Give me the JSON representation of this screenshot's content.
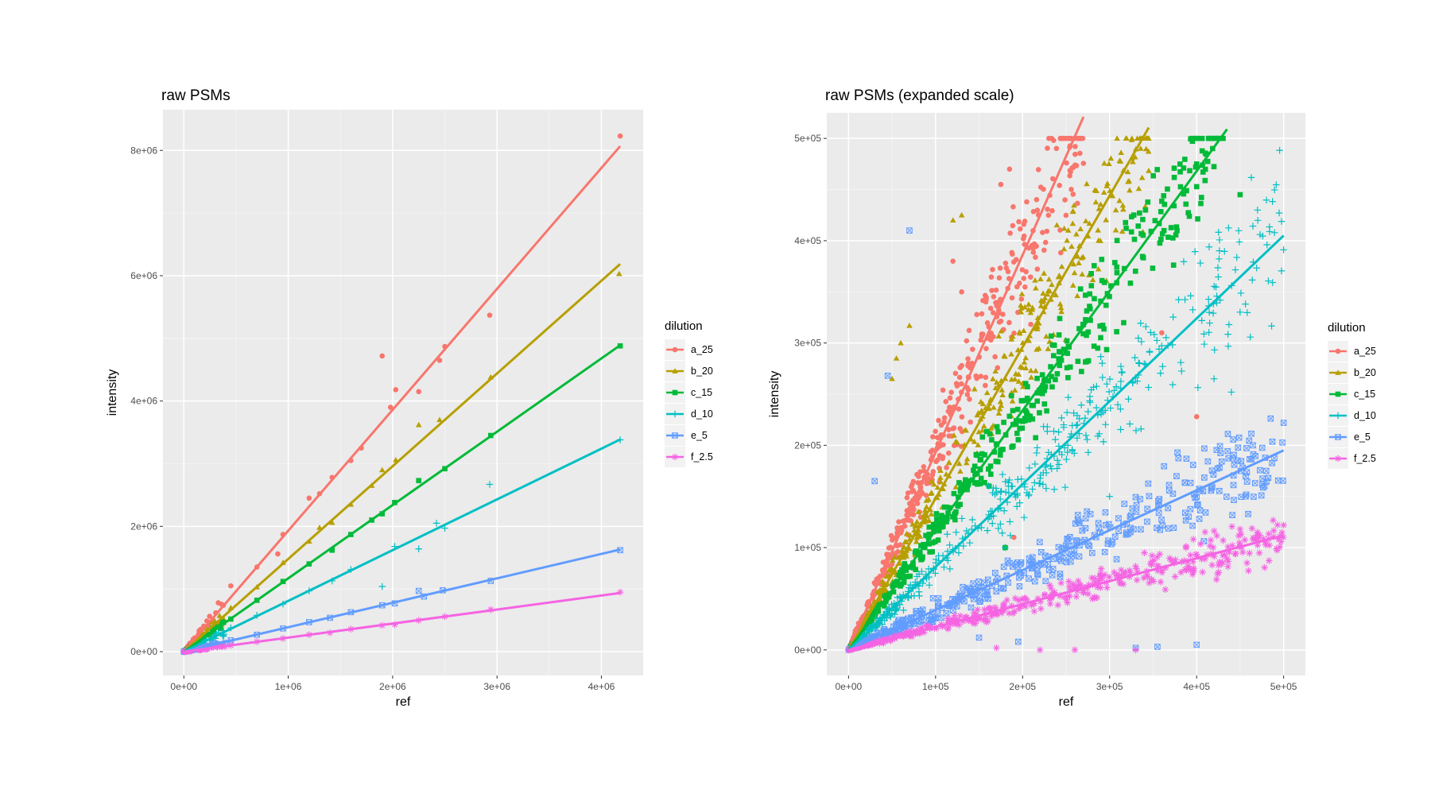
{
  "chart_data": [
    {
      "type": "scatter",
      "title": "raw PSMs",
      "xlabel": "ref",
      "ylabel": "intensity",
      "xlim": [
        -200000,
        4400000
      ],
      "ylim": [
        -380000,
        8650000
      ],
      "x_ticks": [
        0,
        1000000,
        2000000,
        3000000,
        4000000
      ],
      "x_tick_labels": [
        "0e+00",
        "1e+06",
        "2e+06",
        "3e+06",
        "4e+06"
      ],
      "y_ticks": [
        0,
        2000000,
        4000000,
        6000000,
        8000000
      ],
      "y_tick_labels": [
        "0e+00",
        "2e+06",
        "4e+06",
        "6e+06",
        "8e+06"
      ],
      "grid": true,
      "legend_title": "dilution",
      "legend_position": "right",
      "series": [
        {
          "name": "a_25",
          "color": "#F8766D",
          "shape": "circle",
          "slope": 1.93,
          "points": [
            [
              4180000,
              8230000
            ],
            [
              2930000,
              5370000
            ],
            [
              1900000,
              4720000
            ],
            [
              2250000,
              4150000
            ],
            [
              2030000,
              4180000
            ],
            [
              2450000,
              4650000
            ],
            [
              1980000,
              3900000
            ],
            [
              1600000,
              3050000
            ],
            [
              1420000,
              2780000
            ],
            [
              1200000,
              2450000
            ],
            [
              950000,
              1870000
            ],
            [
              900000,
              1560000
            ],
            [
              700000,
              1350000
            ],
            [
              450000,
              1050000
            ],
            [
              330000,
              780000
            ],
            [
              2500000,
              4870000
            ],
            [
              1700000,
              3250000
            ],
            [
              1300000,
              2520000
            ]
          ]
        },
        {
          "name": "b_20",
          "color": "#B79F00",
          "shape": "triangle",
          "slope": 1.48,
          "points": [
            [
              4170000,
              6030000
            ],
            [
              2940000,
              4380000
            ],
            [
              2250000,
              3620000
            ],
            [
              2030000,
              3060000
            ],
            [
              2450000,
              3700000
            ],
            [
              1900000,
              2900000
            ],
            [
              1600000,
              2350000
            ],
            [
              1420000,
              2060000
            ],
            [
              1200000,
              1760000
            ],
            [
              950000,
              1420000
            ],
            [
              700000,
              1030000
            ],
            [
              450000,
              700000
            ],
            [
              1800000,
              2650000
            ],
            [
              1300000,
              1980000
            ]
          ]
        },
        {
          "name": "c_15",
          "color": "#00BA38",
          "shape": "square",
          "slope": 1.17,
          "points": [
            [
              4180000,
              4880000
            ],
            [
              2940000,
              3450000
            ],
            [
              2250000,
              2730000
            ],
            [
              2020000,
              2380000
            ],
            [
              2500000,
              2920000
            ],
            [
              1900000,
              2200000
            ],
            [
              1600000,
              1870000
            ],
            [
              1420000,
              1620000
            ],
            [
              1200000,
              1400000
            ],
            [
              950000,
              1120000
            ],
            [
              700000,
              820000
            ],
            [
              450000,
              520000
            ],
            [
              1800000,
              2100000
            ]
          ]
        },
        {
          "name": "d_10",
          "color": "#00BFC4",
          "shape": "plus",
          "slope": 0.81,
          "points": [
            [
              4180000,
              3380000
            ],
            [
              2930000,
              2670000
            ],
            [
              2250000,
              1640000
            ],
            [
              2020000,
              1680000
            ],
            [
              2420000,
              2050000
            ],
            [
              1900000,
              1040000
            ],
            [
              1600000,
              1310000
            ],
            [
              1420000,
              1130000
            ],
            [
              1200000,
              970000
            ],
            [
              950000,
              760000
            ],
            [
              700000,
              580000
            ],
            [
              450000,
              380000
            ],
            [
              2500000,
              1970000
            ]
          ]
        },
        {
          "name": "e_5",
          "color": "#619CFF",
          "shape": "square-x",
          "slope": 0.39,
          "points": [
            [
              4180000,
              1620000
            ],
            [
              2940000,
              1130000
            ],
            [
              2250000,
              970000
            ],
            [
              2020000,
              770000
            ],
            [
              2480000,
              980000
            ],
            [
              1900000,
              740000
            ],
            [
              1600000,
              630000
            ],
            [
              1400000,
              540000
            ],
            [
              1200000,
              470000
            ],
            [
              950000,
              370000
            ],
            [
              700000,
              270000
            ],
            [
              450000,
              180000
            ],
            [
              2300000,
              880000
            ]
          ]
        },
        {
          "name": "f_2.5",
          "color": "#F564E3",
          "shape": "asterisk",
          "slope": 0.224,
          "points": [
            [
              4180000,
              950000
            ],
            [
              2940000,
              670000
            ],
            [
              2250000,
              500000
            ],
            [
              2020000,
              430000
            ],
            [
              2500000,
              560000
            ],
            [
              1900000,
              420000
            ],
            [
              1600000,
              360000
            ],
            [
              1400000,
              300000
            ],
            [
              1200000,
              270000
            ],
            [
              950000,
              210000
            ],
            [
              700000,
              160000
            ],
            [
              450000,
              100000
            ]
          ]
        }
      ]
    },
    {
      "type": "scatter",
      "title": "raw PSMs (expanded scale)",
      "xlabel": "ref",
      "ylabel": "intensity",
      "xlim": [
        -25000,
        525000
      ],
      "ylim": [
        -25000,
        525000
      ],
      "x_ticks": [
        0,
        100000,
        200000,
        300000,
        400000,
        500000
      ],
      "x_tick_labels": [
        "0e+00",
        "1e+05",
        "2e+05",
        "3e+05",
        "4e+05",
        "5e+05"
      ],
      "y_ticks": [
        0,
        100000,
        200000,
        300000,
        400000,
        500000
      ],
      "y_tick_labels": [
        "0e+00",
        "1e+05",
        "2e+05",
        "3e+05",
        "4e+05",
        "5e+05"
      ],
      "grid": true,
      "legend_title": "dilution",
      "legend_position": "right",
      "series": [
        {
          "name": "a_25",
          "color": "#F8766D",
          "shape": "circle",
          "slope": 1.93,
          "x_max": 270000,
          "spread": 0.13,
          "outliers": [
            [
              185000,
              470000
            ],
            [
              175000,
              455000
            ],
            [
              120000,
              380000
            ],
            [
              130000,
              350000
            ],
            [
              360000,
              310000
            ],
            [
              400000,
              228000
            ],
            [
              190000,
              110000
            ]
          ]
        },
        {
          "name": "b_20",
          "color": "#B79F00",
          "shape": "triangle",
          "slope": 1.48,
          "x_max": 345000,
          "spread": 0.12,
          "outliers": [
            [
              70000,
              317000
            ],
            [
              60000,
              300000
            ],
            [
              55000,
              285000
            ],
            [
              130000,
              425000
            ],
            [
              120000,
              420000
            ],
            [
              50000,
              265000
            ],
            [
              335000,
              500000
            ]
          ]
        },
        {
          "name": "c_15",
          "color": "#00BA38",
          "shape": "square",
          "slope": 1.17,
          "x_max": 435000,
          "spread": 0.1,
          "outliers": [
            [
              450000,
              445000
            ],
            [
              400000,
              475000
            ],
            [
              180000,
              100000
            ]
          ]
        },
        {
          "name": "d_10",
          "color": "#00BFC4",
          "shape": "plus",
          "slope": 0.81,
          "x_max": 500000,
          "spread": 0.15,
          "outliers": [
            [
              470000,
              430000
            ],
            [
              440000,
              252000
            ],
            [
              420000,
              265000
            ],
            [
              300000,
              150000
            ],
            [
              180000,
              100000
            ]
          ]
        },
        {
          "name": "e_5",
          "color": "#619CFF",
          "shape": "square-x",
          "slope": 0.39,
          "x_max": 500000,
          "spread": 0.2,
          "outliers": [
            [
              70000,
              410000
            ],
            [
              45000,
              268000
            ],
            [
              30000,
              165000
            ],
            [
              500000,
              222000
            ],
            [
              480000,
              175000
            ],
            [
              355000,
              3000
            ],
            [
              400000,
              5000
            ],
            [
              330000,
              2000
            ],
            [
              150000,
              12000
            ],
            [
              195000,
              8000
            ],
            [
              250000,
              90000
            ]
          ]
        },
        {
          "name": "f_2.5",
          "color": "#F564E3",
          "shape": "asterisk",
          "slope": 0.224,
          "x_max": 500000,
          "spread": 0.16,
          "outliers": [
            [
              500000,
              122000
            ],
            [
              470000,
              115000
            ],
            [
              450000,
              118000
            ],
            [
              220000,
              0
            ],
            [
              260000,
              0
            ],
            [
              330000,
              0
            ],
            [
              170000,
              2000
            ],
            [
              340000,
              95000
            ]
          ]
        }
      ]
    }
  ]
}
